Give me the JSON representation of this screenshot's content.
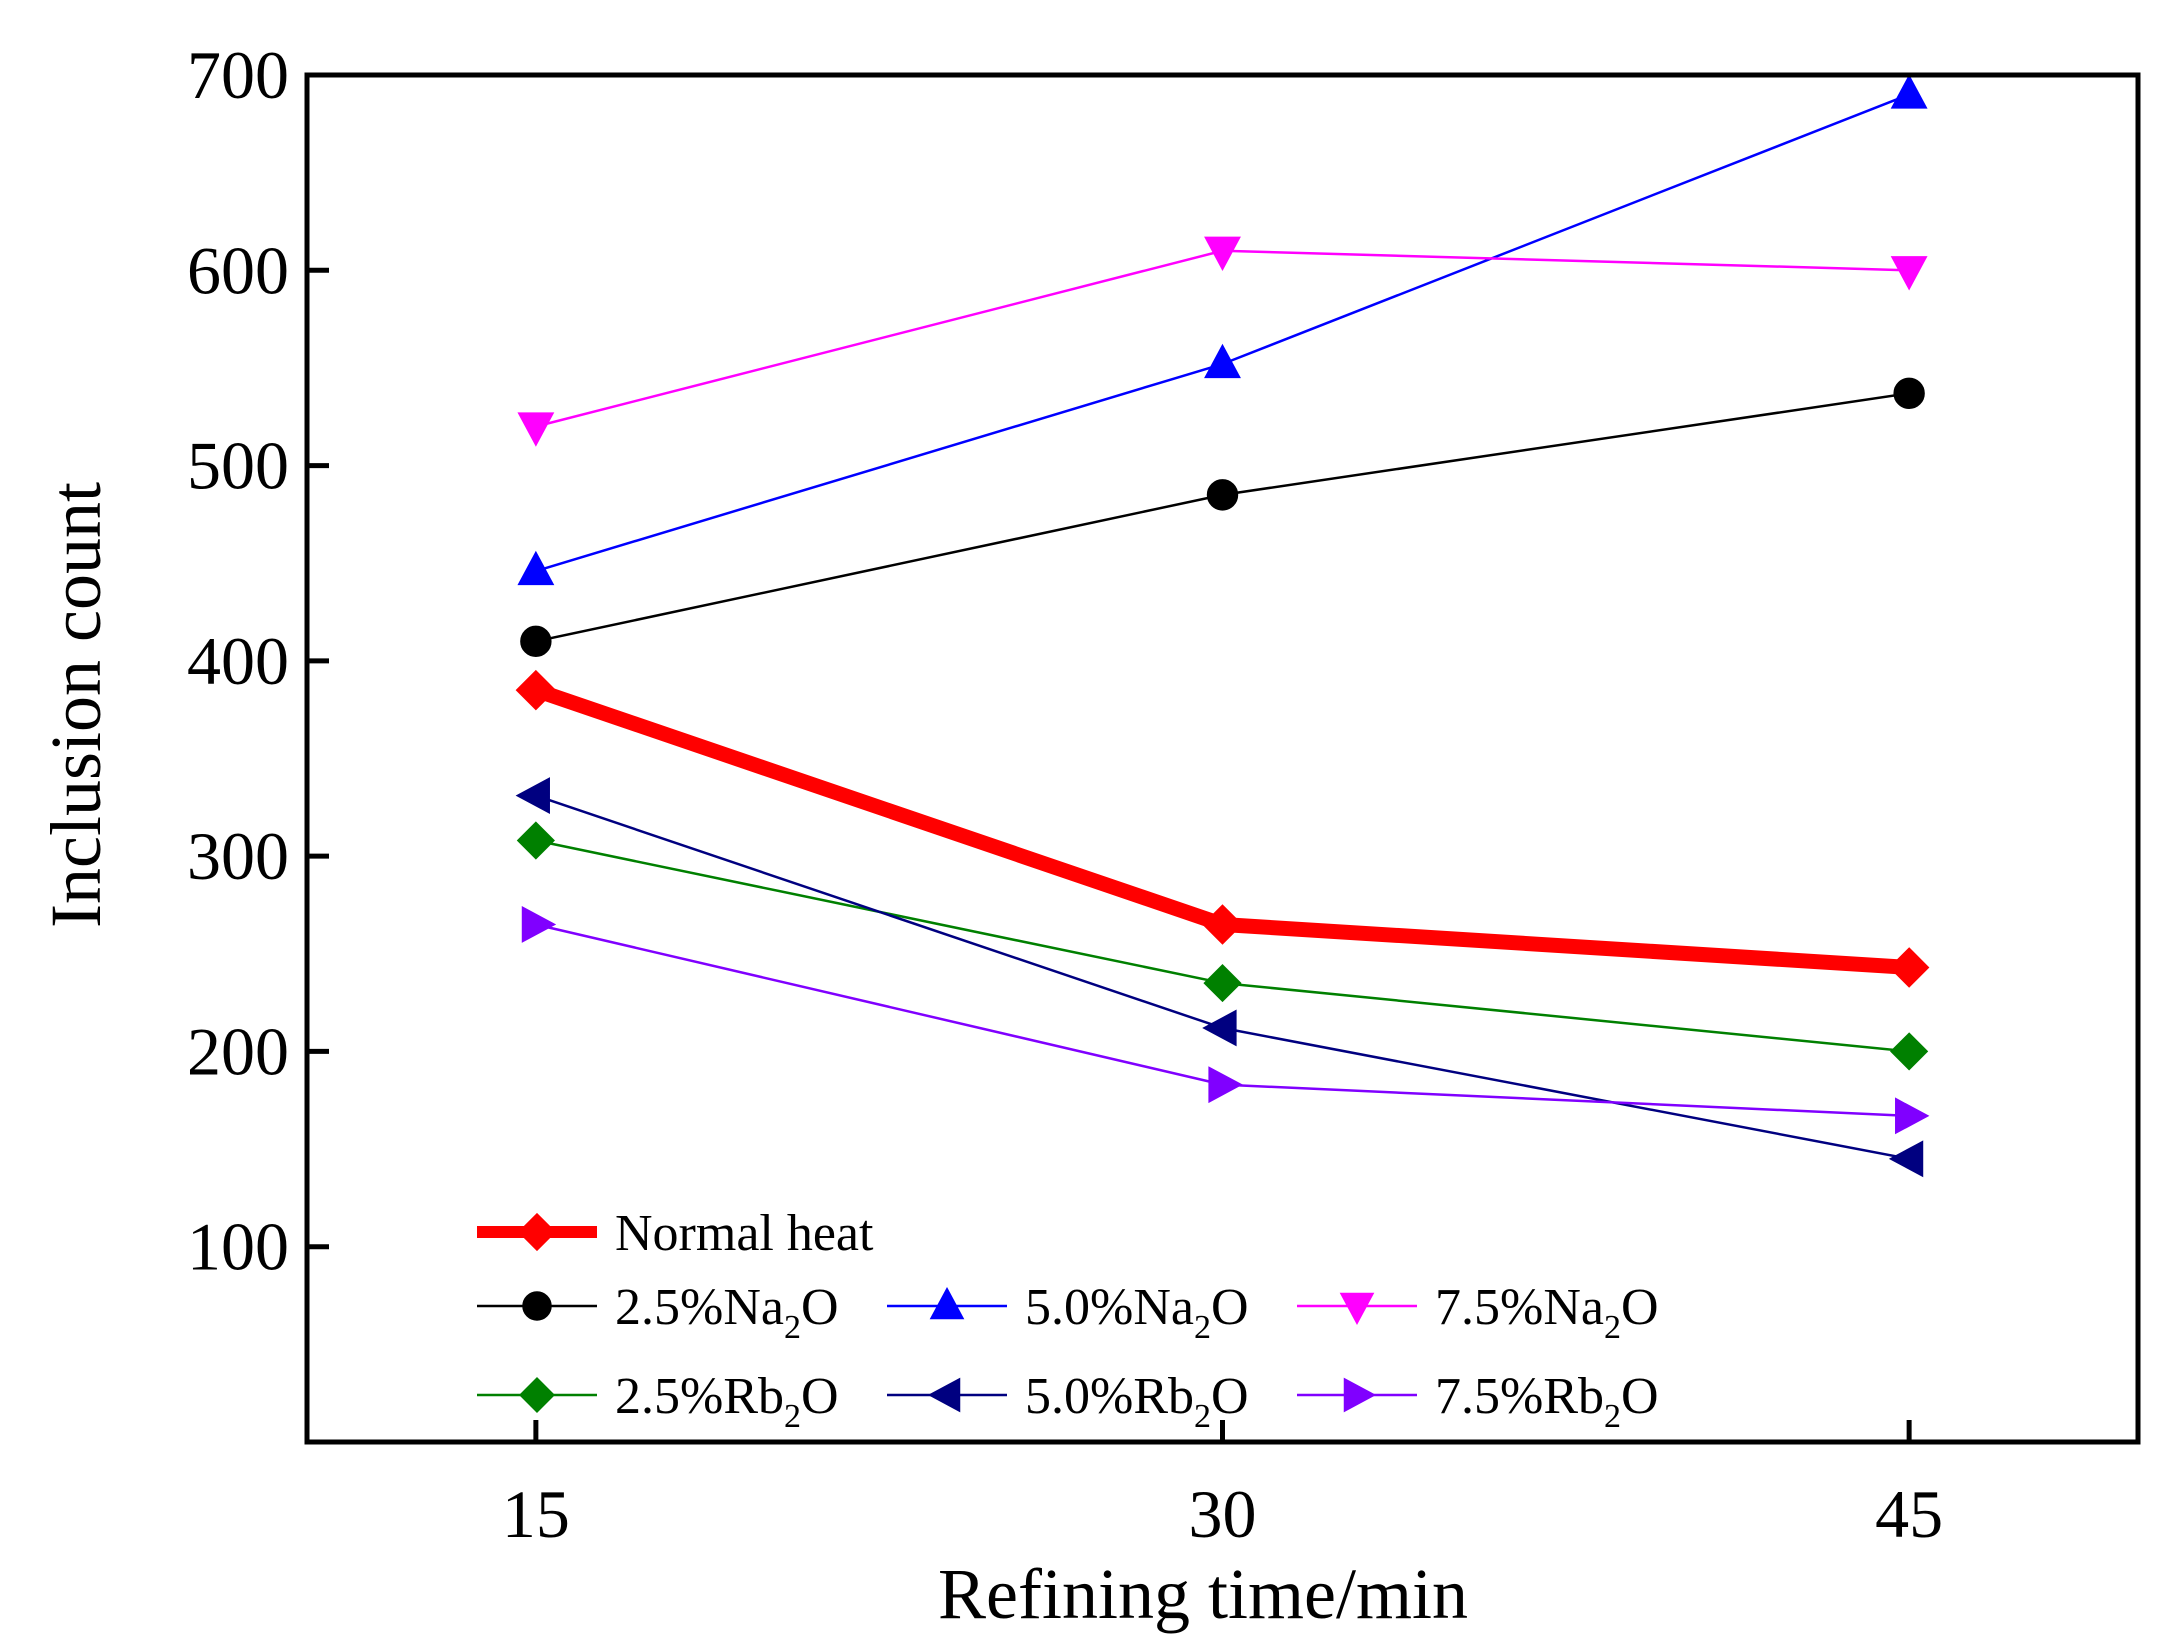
{
  "chart_data": {
    "type": "line",
    "title": "",
    "xlabel": "Refining time/min",
    "ylabel": "Inclusion count",
    "x": [
      15,
      30,
      45
    ],
    "x_tick_labels": [
      "15",
      "30",
      "45"
    ],
    "xlim": [
      10,
      50
    ],
    "ylim": [
      0,
      700
    ],
    "y_ticks": [
      100,
      200,
      300,
      400,
      500,
      600,
      700
    ],
    "y_tick_labels": [
      "100",
      "200",
      "300",
      "400",
      "500",
      "600",
      "700"
    ],
    "grid": false,
    "legend_position": "bottom-left",
    "series": [
      {
        "name": "Normal heat",
        "label_main": "Normal heat",
        "label_sub": "",
        "label_tail": "",
        "color": "#ff0000",
        "marker": "diamond",
        "emphasis": true,
        "values": [
          385,
          265,
          243
        ]
      },
      {
        "name": "2.5%Na2O",
        "label_main": "2.5%Na",
        "label_sub": "2",
        "label_tail": "O",
        "color": "#000000",
        "marker": "circle",
        "emphasis": false,
        "values": [
          410,
          485,
          537
        ]
      },
      {
        "name": "5.0%Na2O",
        "label_main": "5.0%Na",
        "label_sub": "2",
        "label_tail": "O",
        "color": "#0000ff",
        "marker": "triangle-up",
        "emphasis": false,
        "values": [
          446,
          552,
          690
        ]
      },
      {
        "name": "7.5%Na2O",
        "label_main": "7.5%Na",
        "label_sub": "2",
        "label_tail": "O",
        "color": "#ff00ff",
        "marker": "triangle-down",
        "emphasis": false,
        "values": [
          520,
          610,
          600
        ]
      },
      {
        "name": "2.5%Rb2O",
        "label_main": "2.5%Rb",
        "label_sub": "2",
        "label_tail": "O",
        "color": "#008000",
        "marker": "diamond",
        "emphasis": false,
        "values": [
          308,
          235,
          200
        ]
      },
      {
        "name": "5.0%Rb2O",
        "label_main": "5.0%Rb",
        "label_sub": "2",
        "label_tail": "O",
        "color": "#000080",
        "marker": "triangle-left",
        "emphasis": false,
        "values": [
          331,
          212,
          145
        ]
      },
      {
        "name": "7.5%Rb2O",
        "label_main": "7.5%Rb",
        "label_sub": "2",
        "label_tail": "O",
        "color": "#8000ff",
        "marker": "triangle-right",
        "emphasis": false,
        "values": [
          265,
          183,
          167
        ]
      }
    ]
  }
}
